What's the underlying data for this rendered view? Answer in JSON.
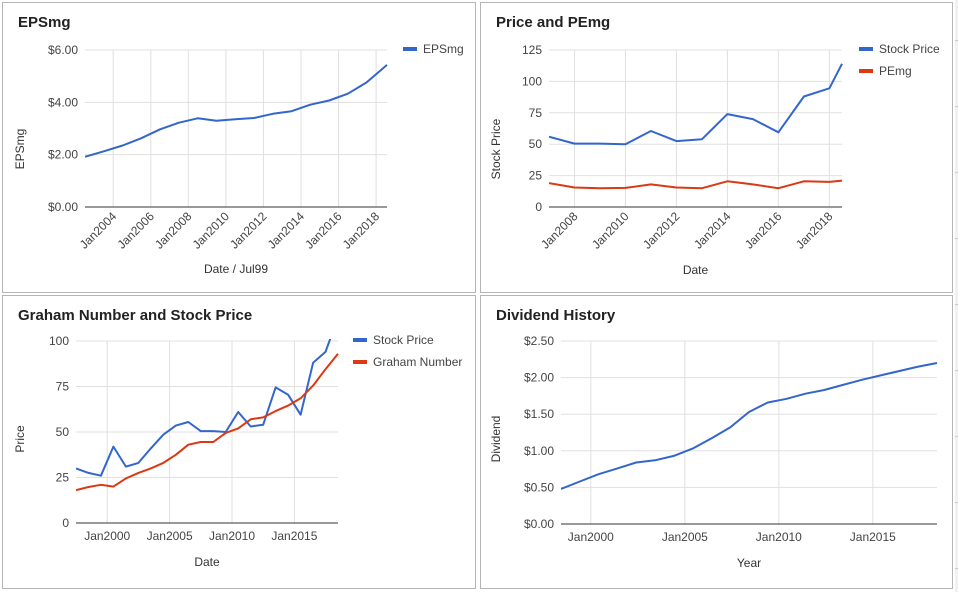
{
  "chart_data": [
    {
      "type": "line",
      "title": "EPSmg",
      "xlabel": "Date / Jul99",
      "ylabel": "EPSmg",
      "xaxis": "date",
      "xlim": [
        "2002-07-01",
        "2018-08-01"
      ],
      "ylim": [
        0,
        6
      ],
      "yticks": [
        "$0.00",
        "$2.00",
        "$4.00",
        "$6.00"
      ],
      "ytick_values": [
        0,
        2,
        4,
        6
      ],
      "xticks": [
        "Jan2004",
        "Jan2006",
        "Jan2008",
        "Jan2010",
        "Jan2012",
        "Jan2014",
        "Jan2016",
        "Jan2018"
      ],
      "grid": true,
      "legend": "right",
      "series": [
        {
          "name": "EPSmg",
          "color": "#3366cc",
          "x": [
            "2002-07-01",
            "2003-07-01",
            "2004-07-01",
            "2005-07-01",
            "2006-07-01",
            "2007-07-01",
            "2008-07-01",
            "2009-07-01",
            "2010-07-01",
            "2011-07-01",
            "2012-07-01",
            "2013-07-01",
            "2014-07-01",
            "2015-07-01",
            "2016-07-01",
            "2017-07-01",
            "2018-08-01"
          ],
          "values": [
            1.92,
            2.13,
            2.35,
            2.63,
            2.97,
            3.22,
            3.39,
            3.3,
            3.35,
            3.4,
            3.56,
            3.66,
            3.91,
            4.07,
            4.33,
            4.76,
            5.43
          ]
        }
      ]
    },
    {
      "type": "line",
      "title": "Price and PEmg",
      "xlabel": "Date",
      "ylabel": "Stock Price",
      "xaxis": "date",
      "xlim": [
        "2007-01-01",
        "2018-07-01"
      ],
      "ylim": [
        0,
        125
      ],
      "yticks": [
        "0",
        "25",
        "50",
        "75",
        "100",
        "125"
      ],
      "ytick_values": [
        0,
        25,
        50,
        75,
        100,
        125
      ],
      "xticks": [
        "Jan2008",
        "Jan2010",
        "Jan2012",
        "Jan2014",
        "Jan2016",
        "Jan2018"
      ],
      "grid": true,
      "legend": "right",
      "series": [
        {
          "name": "Stock Price",
          "color": "#3366cc",
          "x": [
            "2007-01-01",
            "2008-01-01",
            "2009-01-01",
            "2010-01-01",
            "2011-01-01",
            "2012-01-01",
            "2013-01-01",
            "2014-01-01",
            "2015-01-01",
            "2016-01-01",
            "2017-01-01",
            "2018-01-01",
            "2018-07-01"
          ],
          "values": [
            56,
            50.5,
            50.5,
            50,
            60.5,
            52.5,
            54,
            74,
            70,
            59.5,
            88,
            94.5,
            114
          ]
        },
        {
          "name": "PEmg",
          "color": "#dc3912",
          "x": [
            "2007-01-01",
            "2008-01-01",
            "2009-01-01",
            "2010-01-01",
            "2011-01-01",
            "2012-01-01",
            "2013-01-01",
            "2014-01-01",
            "2015-01-01",
            "2016-01-01",
            "2017-01-01",
            "2018-01-01",
            "2018-07-01"
          ],
          "values": [
            19,
            15.5,
            15,
            15.2,
            18,
            15.5,
            15,
            20.5,
            18,
            15,
            20.5,
            20,
            21
          ]
        }
      ]
    },
    {
      "type": "line",
      "title": "Graham Number and Stock Price",
      "xlabel": "Date",
      "ylabel": "Price",
      "xaxis": "date",
      "xlim": [
        "1997-07-01",
        "2018-07-01"
      ],
      "ylim": [
        0,
        100
      ],
      "yticks": [
        "0",
        "25",
        "50",
        "75",
        "100"
      ],
      "ytick_values": [
        0,
        25,
        50,
        75,
        100
      ],
      "xticks": [
        "Jan2000",
        "Jan2005",
        "Jan2010",
        "Jan2015"
      ],
      "grid": true,
      "legend": "right",
      "series": [
        {
          "name": "Stock Price",
          "color": "#3366cc",
          "x": [
            "1997-07-01",
            "1998-07-01",
            "1999-07-01",
            "2000-07-01",
            "2001-07-01",
            "2002-07-01",
            "2003-07-01",
            "2004-07-01",
            "2005-07-01",
            "2006-07-01",
            "2007-07-01",
            "2008-07-01",
            "2009-07-01",
            "2010-07-01",
            "2011-07-01",
            "2012-07-01",
            "2013-07-01",
            "2014-07-01",
            "2015-07-01",
            "2016-07-01",
            "2017-07-01",
            "2018-07-01"
          ],
          "values": [
            30,
            27.5,
            26,
            42,
            31,
            33,
            41,
            48.5,
            53.5,
            55.5,
            50.5,
            50.5,
            50,
            61,
            53,
            54,
            74.5,
            70.5,
            59.5,
            88,
            94,
            113
          ]
        },
        {
          "name": "Graham Number",
          "color": "#dc3912",
          "x": [
            "1997-07-01",
            "1998-07-01",
            "1999-07-01",
            "2000-07-01",
            "2001-07-01",
            "2002-07-01",
            "2003-07-01",
            "2004-07-01",
            "2005-07-01",
            "2006-07-01",
            "2007-07-01",
            "2008-07-01",
            "2009-07-01",
            "2010-07-01",
            "2011-07-01",
            "2012-07-01",
            "2013-07-01",
            "2014-07-01",
            "2015-07-01",
            "2016-07-01",
            "2017-07-01",
            "2018-07-01"
          ],
          "values": [
            18,
            19.8,
            21,
            20,
            24.5,
            27.5,
            30,
            33,
            37.5,
            43,
            44.5,
            44.5,
            49.5,
            52,
            57,
            58,
            61.5,
            64.5,
            68.5,
            75.5,
            84.5,
            93
          ]
        }
      ]
    },
    {
      "type": "line",
      "title": "Dividend History",
      "xlabel": "Year",
      "ylabel": "Dividend",
      "xaxis": "date",
      "xlim": [
        "1998-06-01",
        "2018-06-01"
      ],
      "ylim": [
        0,
        2.5
      ],
      "yticks": [
        "$0.00",
        "$0.50",
        "$1.00",
        "$1.50",
        "$2.00",
        "$2.50"
      ],
      "ytick_values": [
        0,
        0.5,
        1.0,
        1.5,
        2.0,
        2.5
      ],
      "xticks": [
        "Jan2000",
        "Jan2005",
        "Jan2010",
        "Jan2015"
      ],
      "grid": true,
      "legend": "none",
      "series": [
        {
          "color": "#3366cc",
          "x": [
            "1998-06-01",
            "1999-06-01",
            "2000-06-01",
            "2001-06-01",
            "2002-06-01",
            "2003-06-01",
            "2004-06-01",
            "2005-06-01",
            "2006-06-01",
            "2007-06-01",
            "2008-06-01",
            "2009-06-01",
            "2010-06-01",
            "2011-06-01",
            "2012-06-01",
            "2013-06-01",
            "2014-06-01",
            "2015-06-01",
            "2016-06-01",
            "2017-06-01",
            "2018-06-01"
          ],
          "values": [
            0.48,
            0.58,
            0.68,
            0.76,
            0.84,
            0.87,
            0.93,
            1.03,
            1.17,
            1.32,
            1.53,
            1.66,
            1.71,
            1.78,
            1.83,
            1.9,
            1.97,
            2.03,
            2.09,
            2.15,
            2.2
          ]
        }
      ]
    }
  ]
}
